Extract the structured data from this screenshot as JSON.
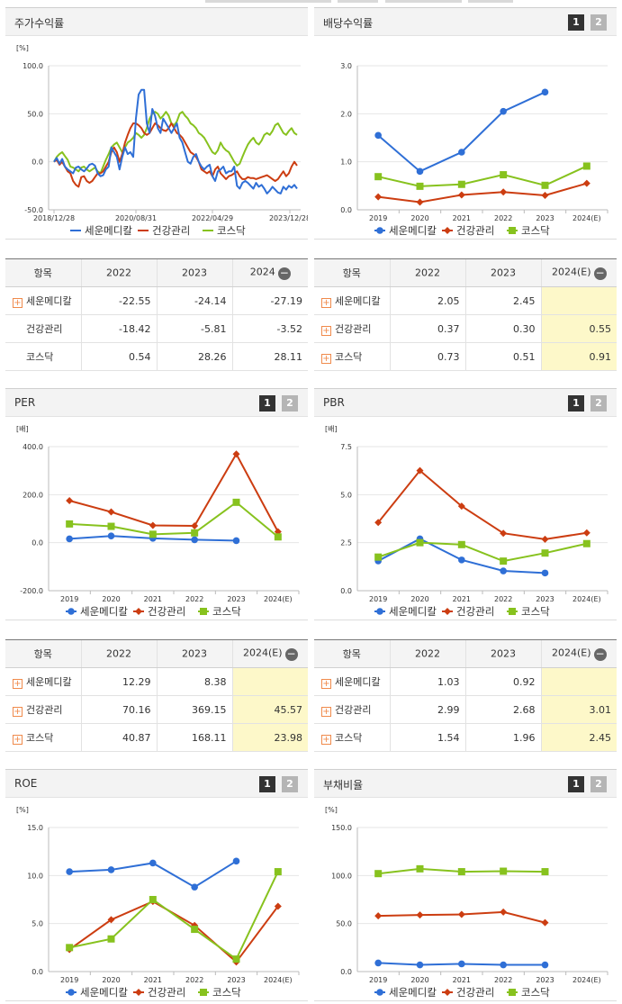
{
  "colors": {
    "series1": "#2f6fd6",
    "series2": "#cc3d11",
    "series3": "#87c21e",
    "highlight": "#fdf8c9"
  },
  "panels": {
    "stock": {
      "title": "주가수익률",
      "unit": "[%]",
      "chart_data": {
        "type": "line",
        "title": "주가수익률",
        "ylabel": "[%]",
        "ylim": [
          -50,
          100
        ],
        "yticks": [
          "100.0",
          "50.0",
          "0.0",
          "-50.0"
        ],
        "xticks": [
          "2018/12/28",
          "2020/08/31",
          "2022/04/29",
          "2023/12/28"
        ],
        "series": [
          {
            "name": "세운메디칼",
            "values": [
              0,
              4,
              -2,
              3,
              -5,
              -8,
              -10,
              -12,
              -6,
              -5,
              -8,
              -10,
              -7,
              -3,
              -2,
              -4,
              -12,
              -15,
              -14,
              -8,
              -5,
              15,
              10,
              5,
              -8,
              5,
              15,
              8,
              10,
              5,
              45,
              70,
              75,
              75,
              40,
              30,
              55,
              48,
              35,
              30,
              45,
              40,
              35,
              30,
              35,
              40,
              25,
              20,
              10,
              0,
              -2,
              5,
              8,
              0,
              -5,
              -8,
              -5,
              -3,
              -15,
              -20,
              -10,
              -8,
              -5,
              -12,
              -10,
              -10,
              -5,
              -25,
              -28,
              -22,
              -20,
              -22,
              -25,
              -28,
              -22,
              -26,
              -24,
              -28,
              -33,
              -30,
              -26,
              -29,
              -32,
              -33,
              -26,
              -29,
              -25,
              -27,
              -24,
              -28
            ]
          },
          {
            "name": "건강관리",
            "values": [
              0,
              2,
              -3,
              0,
              -5,
              -10,
              -12,
              -20,
              -24,
              -26,
              -16,
              -15,
              -20,
              -22,
              -20,
              -16,
              -12,
              -12,
              -10,
              -5,
              0,
              10,
              15,
              10,
              0,
              8,
              20,
              28,
              35,
              40,
              40,
              38,
              35,
              30,
              28,
              30,
              35,
              40,
              38,
              35,
              33,
              32,
              35,
              40,
              35,
              30,
              28,
              25,
              20,
              15,
              10,
              8,
              5,
              0,
              -8,
              -10,
              -12,
              -10,
              -15,
              -8,
              -5,
              -12,
              -15,
              -18,
              -15,
              -14,
              -12,
              -10,
              -15,
              -18,
              -18,
              -16,
              -17,
              -17,
              -18,
              -17,
              -16,
              -15,
              -14,
              -16,
              -18,
              -20,
              -18,
              -14,
              -10,
              -15,
              -12,
              -5,
              0,
              -4
            ]
          },
          {
            "name": "코스닥",
            "values": [
              0,
              5,
              8,
              10,
              6,
              2,
              -5,
              -6,
              -8,
              -10,
              -6,
              -5,
              -8,
              -10,
              -8,
              -6,
              -10,
              -12,
              -5,
              2,
              8,
              15,
              18,
              20,
              15,
              10,
              15,
              20,
              22,
              25,
              30,
              28,
              25,
              28,
              35,
              45,
              50,
              52,
              50,
              45,
              48,
              52,
              48,
              40,
              38,
              42,
              50,
              52,
              48,
              45,
              40,
              38,
              35,
              30,
              28,
              25,
              20,
              15,
              10,
              8,
              12,
              20,
              15,
              12,
              10,
              5,
              0,
              -4,
              -2,
              5,
              12,
              18,
              22,
              25,
              20,
              18,
              22,
              28,
              30,
              28,
              32,
              38,
              40,
              35,
              30,
              28,
              32,
              35,
              30,
              28
            ]
          }
        ]
      }
    },
    "dividend": {
      "title": "배당수익률",
      "chart_data": {
        "type": "line",
        "title": "배당수익률",
        "ylim": [
          0,
          3
        ],
        "yticks": [
          "3.0",
          "2.0",
          "1.0",
          "0.0"
        ],
        "categories": [
          "2019",
          "2020",
          "2021",
          "2022",
          "2023",
          "2024(E)"
        ],
        "series": [
          {
            "name": "세운메디칼",
            "values": [
              1.55,
              0.8,
              1.2,
              2.05,
              2.45,
              null
            ]
          },
          {
            "name": "건강관리",
            "values": [
              0.27,
              0.16,
              0.31,
              0.37,
              0.3,
              0.55
            ]
          },
          {
            "name": "코스닥",
            "values": [
              0.69,
              0.49,
              0.53,
              0.73,
              0.51,
              0.91
            ]
          }
        ]
      }
    },
    "per": {
      "title": "PER",
      "unit": "[배]",
      "chart_data": {
        "type": "line",
        "title": "PER",
        "ylabel": "[배]",
        "ylim": [
          -200,
          400
        ],
        "yticks": [
          "400.0",
          "200.0",
          "0.0",
          "-200.0"
        ],
        "categories": [
          "2019",
          "2020",
          "2021",
          "2022",
          "2023",
          "2024(E)"
        ],
        "series": [
          {
            "name": "세운메디칼",
            "values": [
              16,
              28,
              18,
              12.29,
              8.38,
              null
            ]
          },
          {
            "name": "건강관리",
            "values": [
              175,
              128,
              72,
              70.16,
              369.15,
              45.57
            ]
          },
          {
            "name": "코스닥",
            "values": [
              78,
              68,
              35,
              40.87,
              168.11,
              23.98
            ]
          }
        ]
      }
    },
    "pbr": {
      "title": "PBR",
      "unit": "[배]",
      "chart_data": {
        "type": "line",
        "title": "PBR",
        "ylabel": "[배]",
        "ylim": [
          0,
          7.5
        ],
        "yticks": [
          "7.5",
          "5.0",
          "2.5",
          "0.0"
        ],
        "categories": [
          "2019",
          "2020",
          "2021",
          "2022",
          "2023",
          "2024(E)"
        ],
        "series": [
          {
            "name": "세운메디칼",
            "values": [
              1.55,
              2.7,
              1.6,
              1.03,
              0.92,
              null
            ]
          },
          {
            "name": "건강관리",
            "values": [
              3.55,
              6.25,
              4.4,
              2.99,
              2.68,
              3.01
            ]
          },
          {
            "name": "코스닥",
            "values": [
              1.75,
              2.5,
              2.4,
              1.54,
              1.96,
              2.45
            ]
          }
        ]
      }
    },
    "roe": {
      "title": "ROE",
      "unit": "[%]",
      "chart_data": {
        "type": "line",
        "title": "ROE",
        "ylabel": "[%]",
        "ylim": [
          0,
          15
        ],
        "yticks": [
          "15.0",
          "10.0",
          "5.0",
          "0.0"
        ],
        "categories": [
          "2019",
          "2020",
          "2021",
          "2022",
          "2023",
          "2024(E)"
        ],
        "series": [
          {
            "name": "세운메디칼",
            "values": [
              10.4,
              10.6,
              11.3,
              8.8,
              11.5,
              null
            ]
          },
          {
            "name": "건강관리",
            "values": [
              2.3,
              5.4,
              7.3,
              4.8,
              1.0,
              6.8
            ]
          },
          {
            "name": "코스닥",
            "values": [
              2.5,
              3.4,
              7.5,
              4.4,
              1.3,
              10.4
            ]
          }
        ]
      }
    },
    "debt": {
      "title": "부채비율",
      "unit": "[%]",
      "chart_data": {
        "type": "line",
        "title": "부채비율",
        "ylabel": "[%]",
        "ylim": [
          0,
          150
        ],
        "yticks": [
          "150.0",
          "100.0",
          "50.0",
          "0.0"
        ],
        "categories": [
          "2019",
          "2020",
          "2021",
          "2022",
          "2023",
          "2024(E)"
        ],
        "series": [
          {
            "name": "세운메디칼",
            "values": [
              9,
              7,
              8,
              7,
              7,
              null
            ]
          },
          {
            "name": "건강관리",
            "values": [
              58,
              59,
              59.5,
              62,
              51,
              null
            ]
          },
          {
            "name": "코스닥",
            "values": [
              102,
              107,
              104,
              104.5,
              104,
              null
            ]
          }
        ]
      }
    }
  },
  "toggles": {
    "one": "1",
    "two": "2"
  },
  "legend": {
    "s1": "세운메디칼",
    "s2": "건강관리",
    "s3": "코스닥"
  },
  "tables": {
    "stock": {
      "headers": [
        "항목",
        "2022",
        "2023",
        "2024"
      ],
      "rows": [
        {
          "label": "세운메디칼",
          "values": [
            "-22.55",
            "-24.14",
            "-27.19"
          ]
        },
        {
          "label": "건강관리",
          "values": [
            "-18.42",
            "-5.81",
            "-3.52"
          ]
        },
        {
          "label": "코스닥",
          "values": [
            "0.54",
            "28.26",
            "28.11"
          ]
        }
      ]
    },
    "dividend": {
      "headers": [
        "항목",
        "2022",
        "2023",
        "2024(E)"
      ],
      "rows": [
        {
          "label": "세운메디칼",
          "values": [
            "2.05",
            "2.45",
            ""
          ]
        },
        {
          "label": "건강관리",
          "values": [
            "0.37",
            "0.30",
            "0.55"
          ]
        },
        {
          "label": "코스닥",
          "values": [
            "0.73",
            "0.51",
            "0.91"
          ]
        }
      ]
    },
    "per": {
      "headers": [
        "항목",
        "2022",
        "2023",
        "2024(E)"
      ],
      "rows": [
        {
          "label": "세운메디칼",
          "values": [
            "12.29",
            "8.38",
            ""
          ]
        },
        {
          "label": "건강관리",
          "values": [
            "70.16",
            "369.15",
            "45.57"
          ]
        },
        {
          "label": "코스닥",
          "values": [
            "40.87",
            "168.11",
            "23.98"
          ]
        }
      ]
    },
    "pbr": {
      "headers": [
        "항목",
        "2022",
        "2023",
        "2024(E)"
      ],
      "rows": [
        {
          "label": "세운메디칼",
          "values": [
            "1.03",
            "0.92",
            ""
          ]
        },
        {
          "label": "건강관리",
          "values": [
            "2.99",
            "2.68",
            "3.01"
          ]
        },
        {
          "label": "코스닥",
          "values": [
            "1.54",
            "1.96",
            "2.45"
          ]
        }
      ]
    }
  }
}
